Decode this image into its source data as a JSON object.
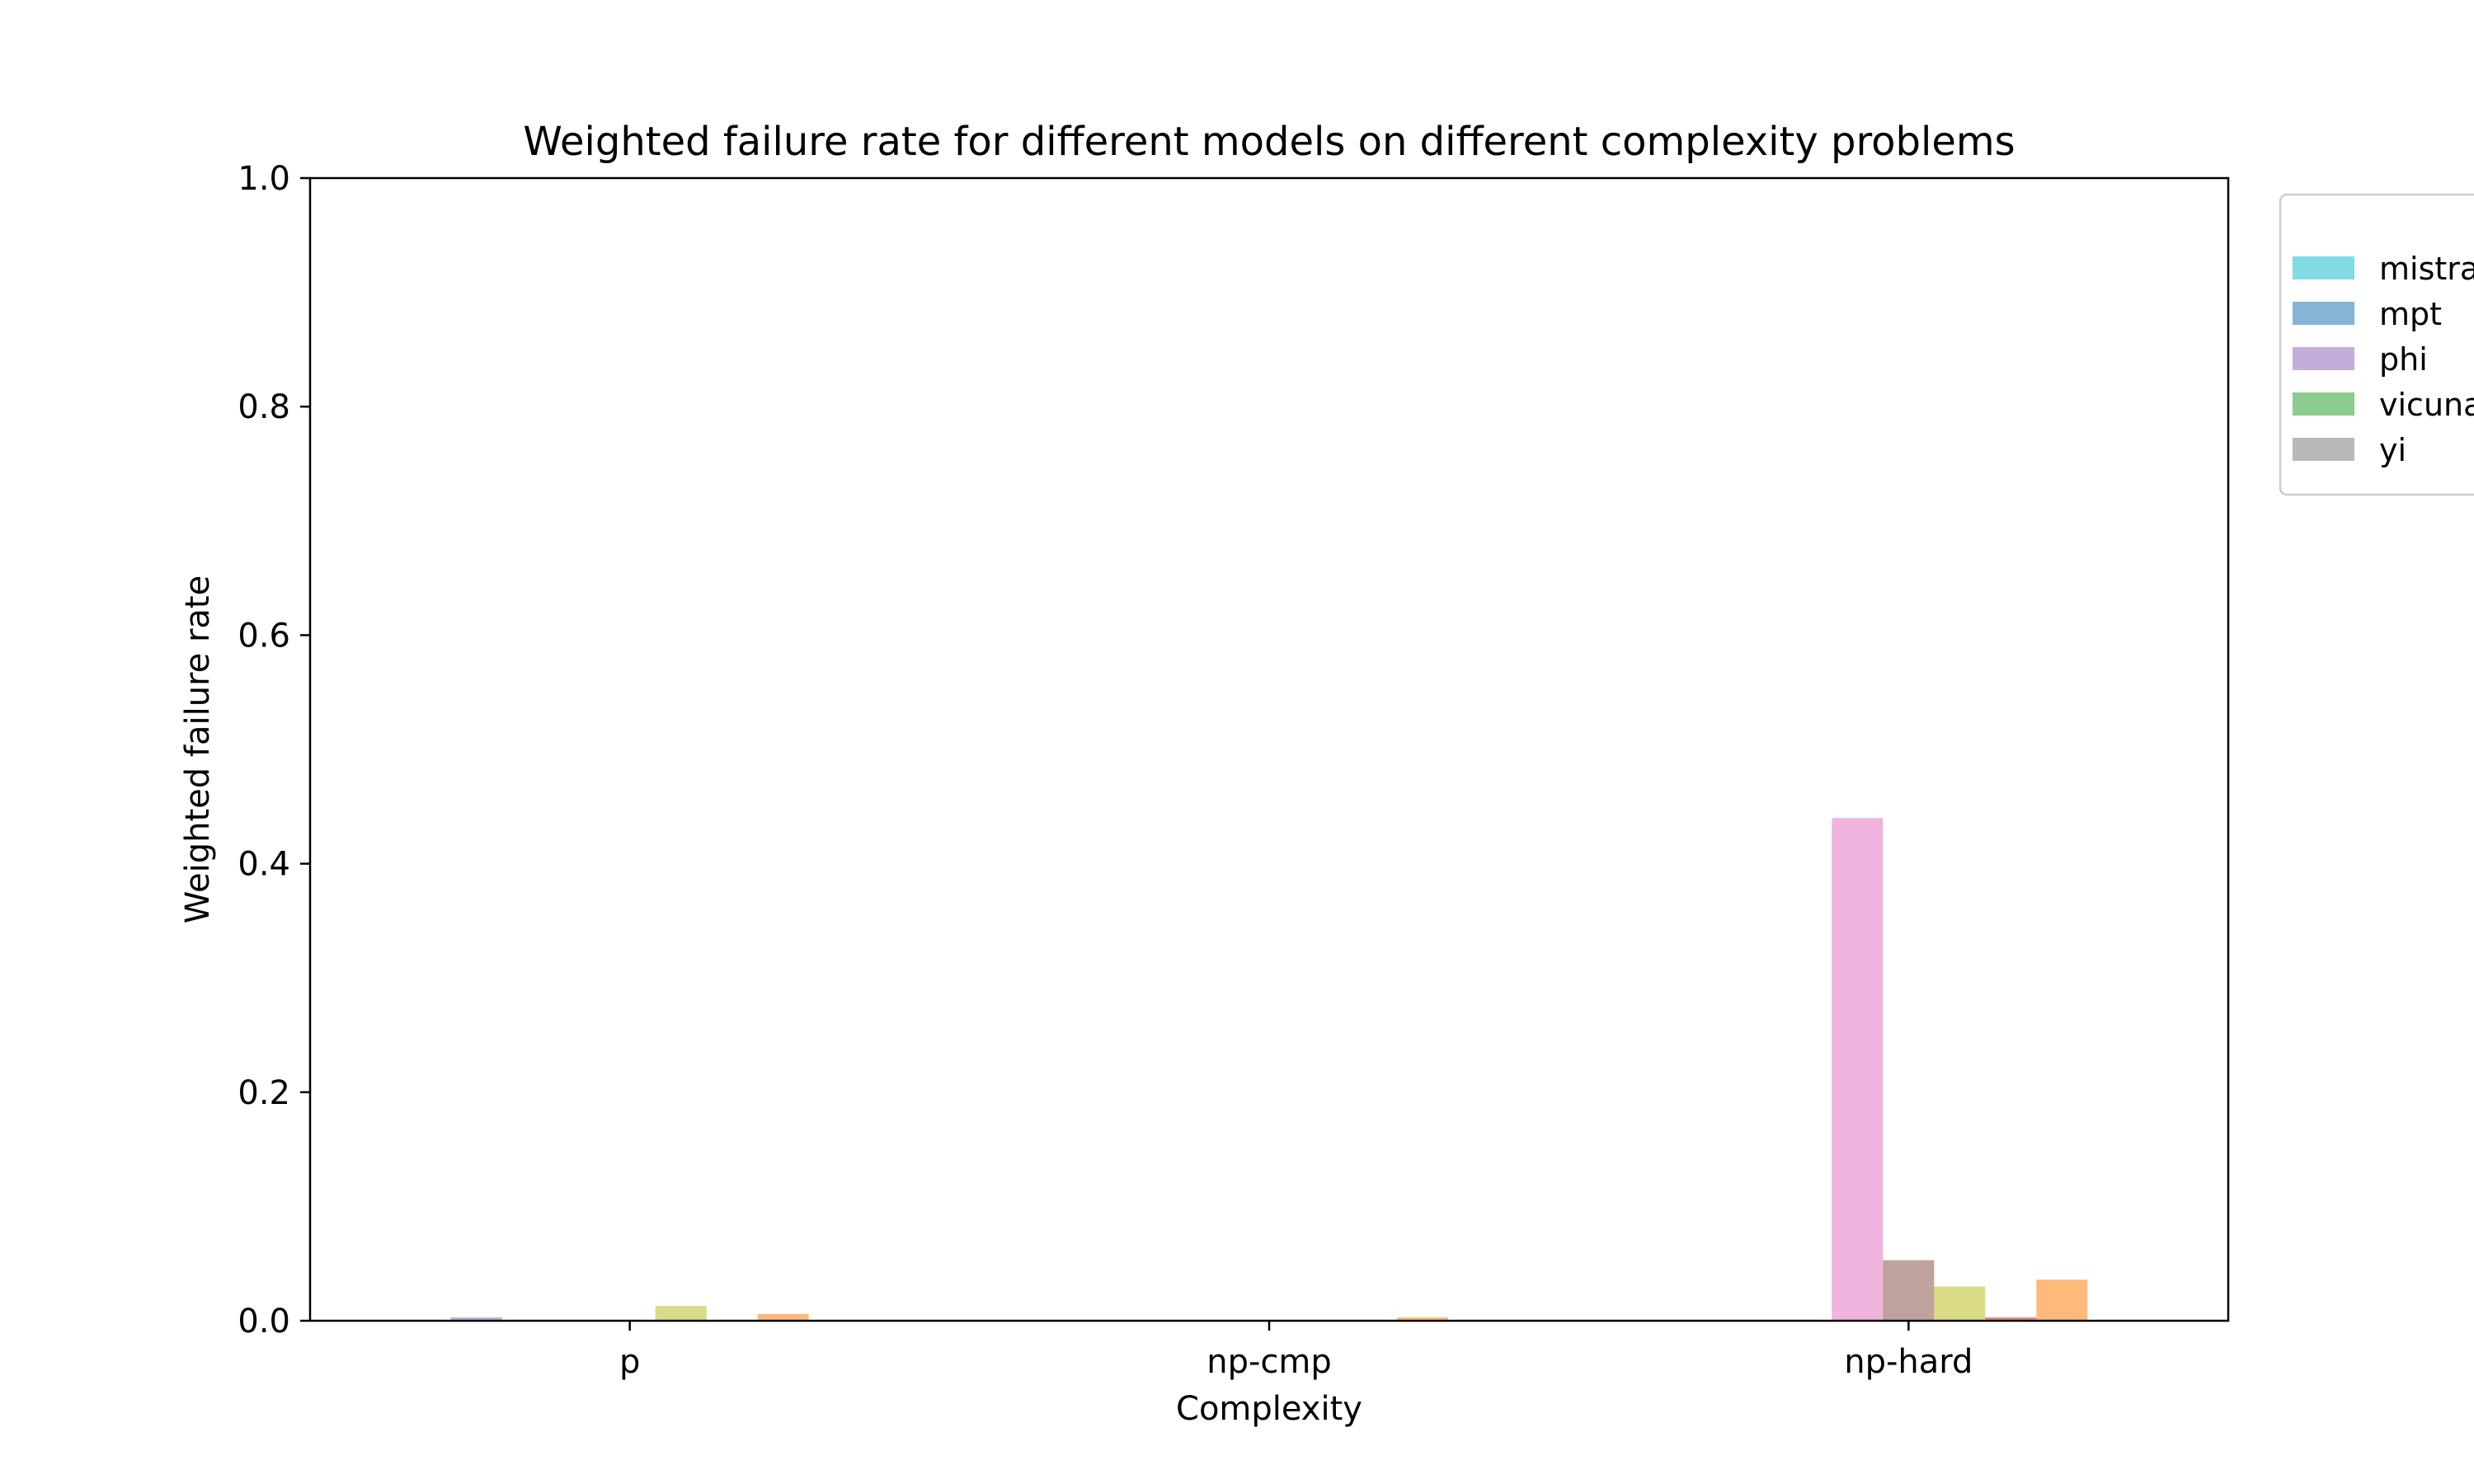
{
  "chart_data": {
    "type": "bar",
    "title": "Weighted failure rate for different models on different complexity problems",
    "xlabel": "Complexity",
    "ylabel": "Weighted failure rate",
    "ylim": [
      0,
      1.0
    ],
    "yticks": [
      "0.0",
      "0.2",
      "0.4",
      "0.6",
      "0.8",
      "1.0"
    ],
    "categories": [
      "p",
      "np-cmp",
      "np-hard"
    ],
    "grid": false,
    "legend_placement": "outside-top-right",
    "series": [
      {
        "name": "",
        "color": "#bcbd22",
        "values": [
          0,
          0,
          0
        ]
      },
      {
        "name": "",
        "color": "#1f77b4",
        "values": [
          0,
          0,
          0
        ]
      },
      {
        "name": "",
        "color": "#ff7f0e",
        "values": [
          0,
          0,
          0
        ]
      },
      {
        "name": "",
        "color": "#2ca02c",
        "values": [
          0,
          0,
          0
        ]
      },
      {
        "name": "",
        "color": "#d62728",
        "values": [
          0,
          0,
          0
        ]
      },
      {
        "name": "",
        "color": "#9467bd",
        "values": [
          0.003,
          0,
          0
        ]
      },
      {
        "name": "",
        "color": "#8c564b",
        "values": [
          0,
          0,
          0
        ]
      },
      {
        "name": "",
        "color": "#e377c2",
        "values": [
          0,
          0,
          0.44
        ]
      },
      {
        "name": "",
        "color": "#8c564b",
        "values": [
          0,
          0,
          0.053
        ]
      },
      {
        "name": "",
        "color": "#bcbd22",
        "values": [
          0.013,
          0,
          0.03
        ]
      },
      {
        "name": "",
        "color": "#d62728",
        "values": [
          0,
          0,
          0.003
        ]
      },
      {
        "name": "",
        "color": "#ff7f0e",
        "values": [
          0.006,
          0.003,
          0.036
        ]
      },
      {
        "name": "mistral",
        "color": "#17becf",
        "values": [
          0,
          0,
          0
        ]
      },
      {
        "name": "mpt",
        "color": "#1f77b4",
        "values": [
          0,
          0,
          0
        ]
      },
      {
        "name": "phi",
        "color": "#9467bd",
        "values": [
          0,
          0,
          0
        ]
      },
      {
        "name": "vicuna",
        "color": "#2ca02c",
        "values": [
          0,
          0,
          0
        ]
      },
      {
        "name": "yi",
        "color": "#7f7f7f",
        "values": [
          0,
          0,
          0
        ]
      }
    ]
  }
}
